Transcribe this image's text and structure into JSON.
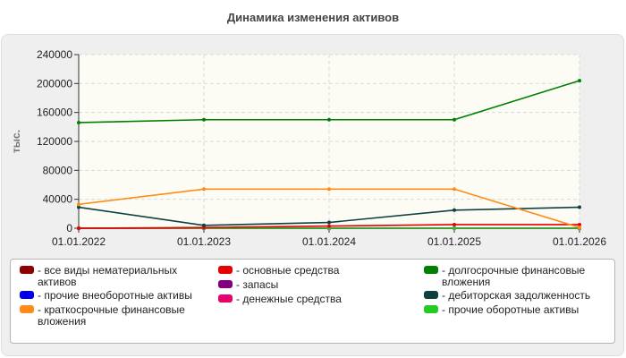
{
  "chart_data": {
    "type": "line",
    "title": "Динамика изменения активов",
    "ylabel": "тыс.",
    "xlabel": "",
    "categories": [
      "01.01.2022",
      "01.01.2023",
      "01.01.2024",
      "01.01.2025",
      "01.01.2026"
    ],
    "ylim": [
      0,
      240000
    ],
    "yticks": [
      "0",
      "40000",
      "80000",
      "120000",
      "160000",
      "200000",
      "240000"
    ],
    "ytick_values": [
      0,
      40000,
      80000,
      120000,
      160000,
      200000,
      240000
    ],
    "grid": true,
    "legend_position": "bottom",
    "series": [
      {
        "name": "все виды нематериальных активов",
        "color": "#8b0000",
        "values": [
          0,
          0,
          0,
          0,
          0
        ]
      },
      {
        "name": "прочие внеоборотные активы",
        "color": "#0000e6",
        "values": [
          0,
          0,
          0,
          0,
          0
        ]
      },
      {
        "name": "краткосрочные финансовые вложения",
        "color": "#ff8c1a",
        "values": [
          33000,
          54000,
          54000,
          54000,
          1000
        ]
      },
      {
        "name": "основные средства",
        "color": "#e60000",
        "values": [
          0,
          1000,
          3000,
          5000,
          5000
        ]
      },
      {
        "name": "запасы",
        "color": "#800080",
        "values": [
          0,
          0,
          0,
          0,
          0
        ]
      },
      {
        "name": "денежные средства",
        "color": "#e8006e",
        "values": [
          0,
          0,
          0,
          0,
          0
        ]
      },
      {
        "name": "долгосрочные финансовые вложения",
        "color": "#007f00",
        "values": [
          146000,
          150000,
          150000,
          150000,
          204000
        ]
      },
      {
        "name": "дебиторская задолженность",
        "color": "#0f4040",
        "values": [
          29000,
          4000,
          8000,
          25000,
          29000
        ]
      },
      {
        "name": "прочие оборотные активы",
        "color": "#22cc22",
        "values": [
          0,
          0,
          0,
          0,
          0
        ]
      }
    ]
  }
}
